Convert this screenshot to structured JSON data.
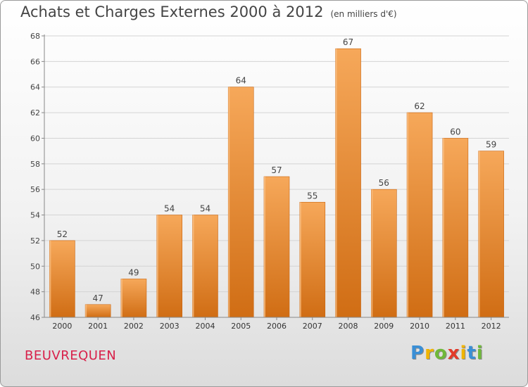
{
  "header": {
    "title": "Achats et Charges Externes 2000 à 2012",
    "unit": "(en milliers d'€)"
  },
  "commune": "BEUVREQUEN",
  "logo": {
    "letters": [
      "P",
      "r",
      "o",
      "x",
      "i",
      "t",
      "i"
    ],
    "colors": [
      "#3a8fd6",
      "#f0b400",
      "#6fb83a",
      "#e23a2a",
      "#f0b400",
      "#3a8fd6",
      "#6fb83a"
    ]
  },
  "chart_data": {
    "type": "bar",
    "title": "Achats et Charges Externes 2000 à 2012",
    "categories": [
      "2000",
      "2001",
      "2002",
      "2003",
      "2004",
      "2005",
      "2006",
      "2007",
      "2008",
      "2009",
      "2010",
      "2011",
      "2012"
    ],
    "values": [
      52,
      47,
      49,
      54,
      54,
      64,
      57,
      55,
      67,
      56,
      62,
      60,
      59
    ],
    "ylim": [
      46,
      68
    ],
    "yticks": [
      46,
      48,
      50,
      52,
      54,
      56,
      58,
      60,
      62,
      64,
      66,
      68
    ],
    "grid": true,
    "bar_color_light": "#f6a85a",
    "bar_color_dark": "#d06d14"
  }
}
